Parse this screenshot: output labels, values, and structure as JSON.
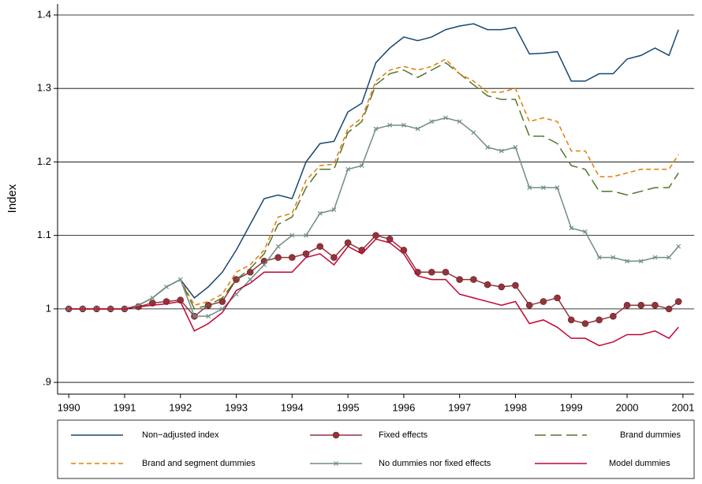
{
  "chart_data": {
    "type": "line",
    "ylabel": "Index",
    "x": [
      1990,
      1990.25,
      1990.5,
      1990.75,
      1991,
      1991.25,
      1991.5,
      1991.75,
      1992,
      1992.25,
      1992.5,
      1992.75,
      1993,
      1993.25,
      1993.5,
      1993.75,
      1994,
      1994.25,
      1994.5,
      1994.75,
      1995,
      1995.25,
      1995.5,
      1995.75,
      1996,
      1996.25,
      1996.5,
      1996.75,
      1997,
      1997.25,
      1997.5,
      1997.75,
      1998,
      1998.25,
      1998.5,
      1998.75,
      1999,
      1999.25,
      1999.5,
      1999.75,
      2000,
      2000.25,
      2000.5,
      2000.75,
      2000.92
    ],
    "xlim": [
      1989.8,
      2001.2
    ],
    "xticks": [
      1990,
      1991,
      1992,
      1993,
      1994,
      1995,
      1996,
      1997,
      1998,
      1999,
      2000,
      2001
    ],
    "ylim": [
      0.884,
      1.415
    ],
    "yticks": [
      {
        "value": 0.9,
        "label": ".9"
      },
      1,
      1.1,
      1.2,
      1.3,
      1.4
    ],
    "grid": true,
    "legend": "bottom",
    "series": [
      {
        "name": "Non−adjusted index",
        "color": "#1a476f",
        "style": "solid",
        "marker": "none",
        "values": [
          1,
          1,
          1,
          1,
          1,
          1.005,
          1.015,
          1.03,
          1.04,
          1.015,
          1.03,
          1.05,
          1.08,
          1.115,
          1.15,
          1.155,
          1.15,
          1.2,
          1.225,
          1.228,
          1.268,
          1.28,
          1.335,
          1.355,
          1.37,
          1.365,
          1.37,
          1.38,
          1.385,
          1.388,
          1.38,
          1.38,
          1.383,
          1.347,
          1.348,
          1.35,
          1.31,
          1.31,
          1.32,
          1.32,
          1.34,
          1.345,
          1.355,
          1.345,
          1.38
        ]
      },
      {
        "name": "Fixed effects",
        "color": "#90353b",
        "style": "solid",
        "marker": "circle",
        "values": [
          1,
          1,
          1,
          1,
          1,
          1.003,
          1.008,
          1.01,
          1.012,
          0.99,
          1.005,
          1.01,
          1.04,
          1.05,
          1.065,
          1.07,
          1.07,
          1.075,
          1.085,
          1.07,
          1.09,
          1.08,
          1.1,
          1.095,
          1.08,
          1.05,
          1.05,
          1.05,
          1.04,
          1.04,
          1.033,
          1.03,
          1.032,
          1.005,
          1.01,
          1.015,
          0.985,
          0.98,
          0.985,
          0.99,
          1.005,
          1.005,
          1.005,
          1,
          1.01
        ]
      },
      {
        "name": "Brand dummies",
        "color": "#55752f",
        "style": "longdash",
        "marker": "none",
        "values": [
          1,
          1,
          1,
          1,
          1,
          1.005,
          1.015,
          1.03,
          1.04,
          1,
          1.005,
          1.015,
          1.04,
          1.055,
          1.075,
          1.115,
          1.125,
          1.165,
          1.19,
          1.19,
          1.24,
          1.255,
          1.305,
          1.32,
          1.325,
          1.315,
          1.325,
          1.335,
          1.32,
          1.305,
          1.29,
          1.285,
          1.285,
          1.235,
          1.235,
          1.225,
          1.195,
          1.19,
          1.16,
          1.16,
          1.155,
          1.16,
          1.165,
          1.165,
          1.185
        ]
      },
      {
        "name": "Brand and segment dummies",
        "color": "#e37e00",
        "style": "dashed",
        "marker": "none",
        "values": [
          1,
          1,
          1,
          1,
          1,
          1.005,
          1.015,
          1.03,
          1.04,
          1.005,
          1.01,
          1.02,
          1.05,
          1.06,
          1.08,
          1.125,
          1.13,
          1.175,
          1.195,
          1.197,
          1.245,
          1.26,
          1.31,
          1.325,
          1.33,
          1.325,
          1.33,
          1.34,
          1.32,
          1.31,
          1.295,
          1.295,
          1.3,
          1.255,
          1.26,
          1.255,
          1.215,
          1.215,
          1.18,
          1.18,
          1.185,
          1.19,
          1.19,
          1.19,
          1.21
        ]
      },
      {
        "name": "No dummies nor fixed effects",
        "color": "#6e8e84",
        "style": "solid",
        "marker": "x",
        "values": [
          1,
          1,
          1,
          1,
          1,
          1.005,
          1.015,
          1.03,
          1.04,
          0.99,
          0.99,
          1,
          1.02,
          1.04,
          1.06,
          1.085,
          1.1,
          1.1,
          1.13,
          1.135,
          1.19,
          1.195,
          1.245,
          1.25,
          1.25,
          1.245,
          1.255,
          1.26,
          1.255,
          1.24,
          1.22,
          1.215,
          1.22,
          1.165,
          1.165,
          1.165,
          1.11,
          1.105,
          1.07,
          1.07,
          1.065,
          1.065,
          1.07,
          1.07,
          1.085
        ]
      },
      {
        "name": "Model dummies",
        "color": "#c10534",
        "style": "solid",
        "marker": "none",
        "values": [
          1,
          1,
          1,
          1,
          1,
          1.003,
          1.005,
          1.007,
          1.01,
          0.97,
          0.98,
          0.995,
          1.025,
          1.035,
          1.05,
          1.05,
          1.05,
          1.07,
          1.075,
          1.06,
          1.085,
          1.075,
          1.095,
          1.09,
          1.075,
          1.045,
          1.04,
          1.04,
          1.02,
          1.015,
          1.01,
          1.005,
          1.01,
          0.98,
          0.985,
          0.975,
          0.96,
          0.96,
          0.95,
          0.955,
          0.965,
          0.965,
          0.97,
          0.96,
          0.975
        ]
      }
    ]
  }
}
